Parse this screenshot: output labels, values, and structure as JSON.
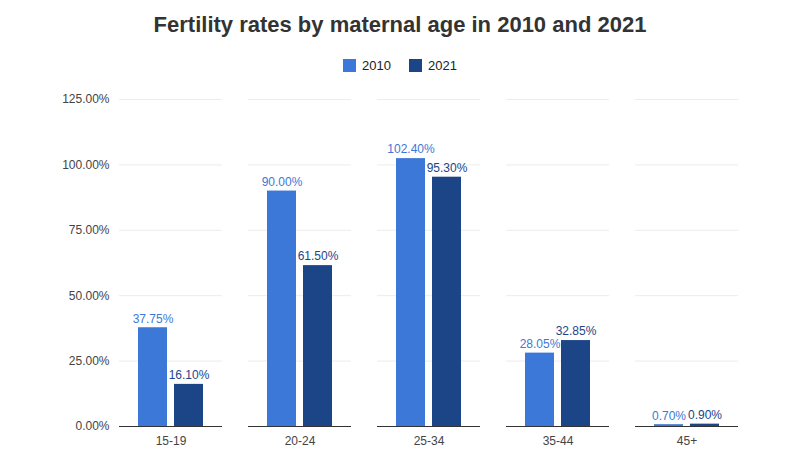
{
  "chart_data": {
    "type": "bar",
    "title": "Fertility rates by maternal age in 2010 and 2021",
    "categories": [
      "15-19",
      "20-24",
      "25-34",
      "35-44",
      "45+"
    ],
    "series": [
      {
        "name": "2010",
        "color": "#3c78d8",
        "values": [
          37.75,
          90,
          102.4,
          28.05,
          0.7
        ],
        "value_labels": [
          "37.75%",
          "90.00%",
          "102.40%",
          "28.05%",
          "0.70%"
        ]
      },
      {
        "name": "2021",
        "color": "#1c4587",
        "values": [
          16.1,
          61.5,
          95.3,
          32.85,
          0.9
        ],
        "value_labels": [
          "16.10%",
          "61.50%",
          "95.30%",
          "32.85%",
          "0.90%"
        ]
      }
    ],
    "ylim": [
      0,
      125
    ],
    "yticks": [
      {
        "value": 0,
        "label": "0.00%"
      },
      {
        "value": 25,
        "label": "25.00%"
      },
      {
        "value": 50,
        "label": "50.00%"
      },
      {
        "value": 75,
        "label": "75.00%"
      },
      {
        "value": 100,
        "label": "100.00%"
      },
      {
        "value": 125,
        "label": "125.00%"
      }
    ],
    "grid": true,
    "legend": "top",
    "data_labels": true
  }
}
